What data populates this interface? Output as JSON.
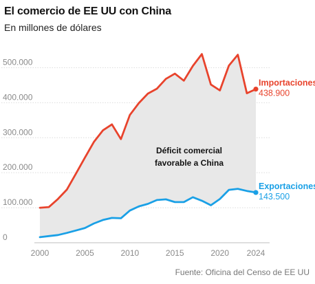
{
  "chart_data": {
    "type": "line",
    "title": "El comercio de EE UU con China",
    "subtitle": "En millones de dólares",
    "source": "Fuente: Oficina del Censo de EE UU",
    "x": [
      2000,
      2001,
      2002,
      2003,
      2004,
      2005,
      2006,
      2007,
      2008,
      2009,
      2010,
      2011,
      2012,
      2013,
      2014,
      2015,
      2016,
      2017,
      2018,
      2019,
      2020,
      2021,
      2022,
      2023,
      2024
    ],
    "xticks": [
      "2000",
      "2005",
      "2010",
      "2015",
      "2020",
      "2024"
    ],
    "xtick_values": [
      2000,
      2005,
      2010,
      2015,
      2020,
      2024
    ],
    "yticks": [
      "0",
      "100.000",
      "200.000",
      "300.000",
      "400.000",
      "500.000"
    ],
    "ytick_values": [
      0,
      100000,
      200000,
      300000,
      400000,
      500000
    ],
    "ylim": [
      0,
      550000
    ],
    "xlim": [
      2000,
      2024
    ],
    "grid": true,
    "fill_between": {
      "color": "#e8e8e8"
    },
    "annotation": [
      "Déficit comercial",
      "favorable a China"
    ],
    "series": [
      {
        "name": "Importaciones",
        "color": "#e8432c",
        "end_label": "438.900",
        "values": [
          100000,
          102000,
          125000,
          152000,
          197000,
          243000,
          288000,
          321000,
          338000,
          296000,
          365000,
          399000,
          426000,
          440000,
          468000,
          483000,
          463000,
          505000,
          539000,
          452000,
          435000,
          506000,
          537000,
          427000,
          438900
        ]
      },
      {
        "name": "Exportaciones",
        "color": "#1aa0e6",
        "end_label": "143.500",
        "values": [
          16000,
          19000,
          22000,
          28000,
          35000,
          42000,
          55000,
          65000,
          71000,
          70000,
          92000,
          104000,
          111000,
          122000,
          124000,
          116000,
          116000,
          130000,
          120000,
          107000,
          125000,
          151000,
          154000,
          148000,
          143500
        ]
      }
    ]
  }
}
